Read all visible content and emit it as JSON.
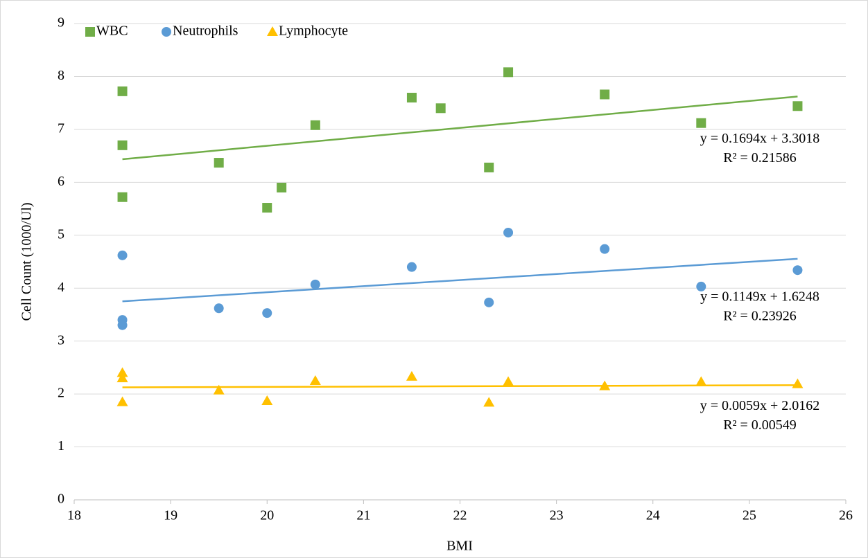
{
  "chart_data": {
    "type": "scatter",
    "x_label": "BMI",
    "y_label": "Cell Count (1000/Ul)",
    "xlim": [
      18,
      26
    ],
    "xticks": [
      18,
      19,
      20,
      21,
      22,
      23,
      24,
      25,
      26
    ],
    "ylim": [
      0,
      9
    ],
    "yticks": [
      0,
      1,
      2,
      3,
      4,
      5,
      6,
      7,
      8,
      9
    ],
    "grid": true,
    "legend": "top-left",
    "series": [
      {
        "name": "WBC",
        "color": "#70ad47",
        "marker": "square",
        "x": [
          18.5,
          18.5,
          18.5,
          19.5,
          20,
          20.15,
          20.5,
          21.5,
          21.8,
          22.3,
          22.5,
          23.5,
          24.5,
          25.5
        ],
        "values": [
          7.72,
          6.7,
          5.72,
          6.37,
          5.52,
          5.9,
          7.08,
          7.6,
          7.4,
          6.28,
          8.08,
          7.66,
          7.12,
          7.44
        ],
        "trendline": {
          "slope": 0.1694,
          "intercept": 3.3018,
          "equation": "y = 0.1694x + 3.3018",
          "r_squared": "R² = 0.21586"
        }
      },
      {
        "name": "Neutrophils",
        "color": "#5b9bd5",
        "marker": "circle",
        "x": [
          18.5,
          18.5,
          18.5,
          19.5,
          20,
          20.5,
          21.5,
          22.3,
          22.5,
          23.5,
          24.5,
          25.5
        ],
        "values": [
          4.62,
          3.4,
          3.3,
          3.62,
          3.53,
          4.07,
          4.4,
          3.73,
          5.05,
          4.74,
          4.03,
          4.34
        ],
        "trendline": {
          "slope": 0.1149,
          "intercept": 1.6248,
          "equation": "y = 0.1149x + 1.6248",
          "r_squared": "R² = 0.23926"
        }
      },
      {
        "name": "Lymphocyte",
        "color": "#ffc000",
        "marker": "triangle",
        "x": [
          18.5,
          18.5,
          18.5,
          19.5,
          20,
          20.5,
          21.5,
          22.3,
          22.5,
          23.5,
          24.5,
          25.5
        ],
        "values": [
          2.4,
          2.3,
          1.85,
          2.07,
          1.87,
          2.25,
          2.33,
          1.84,
          2.23,
          2.15,
          2.23,
          2.19
        ],
        "trendline": {
          "slope": 0.0059,
          "intercept": 2.0162,
          "equation": "y = 0.0059x + 2.0162",
          "r_squared": "R² = 0.00549"
        }
      }
    ]
  }
}
